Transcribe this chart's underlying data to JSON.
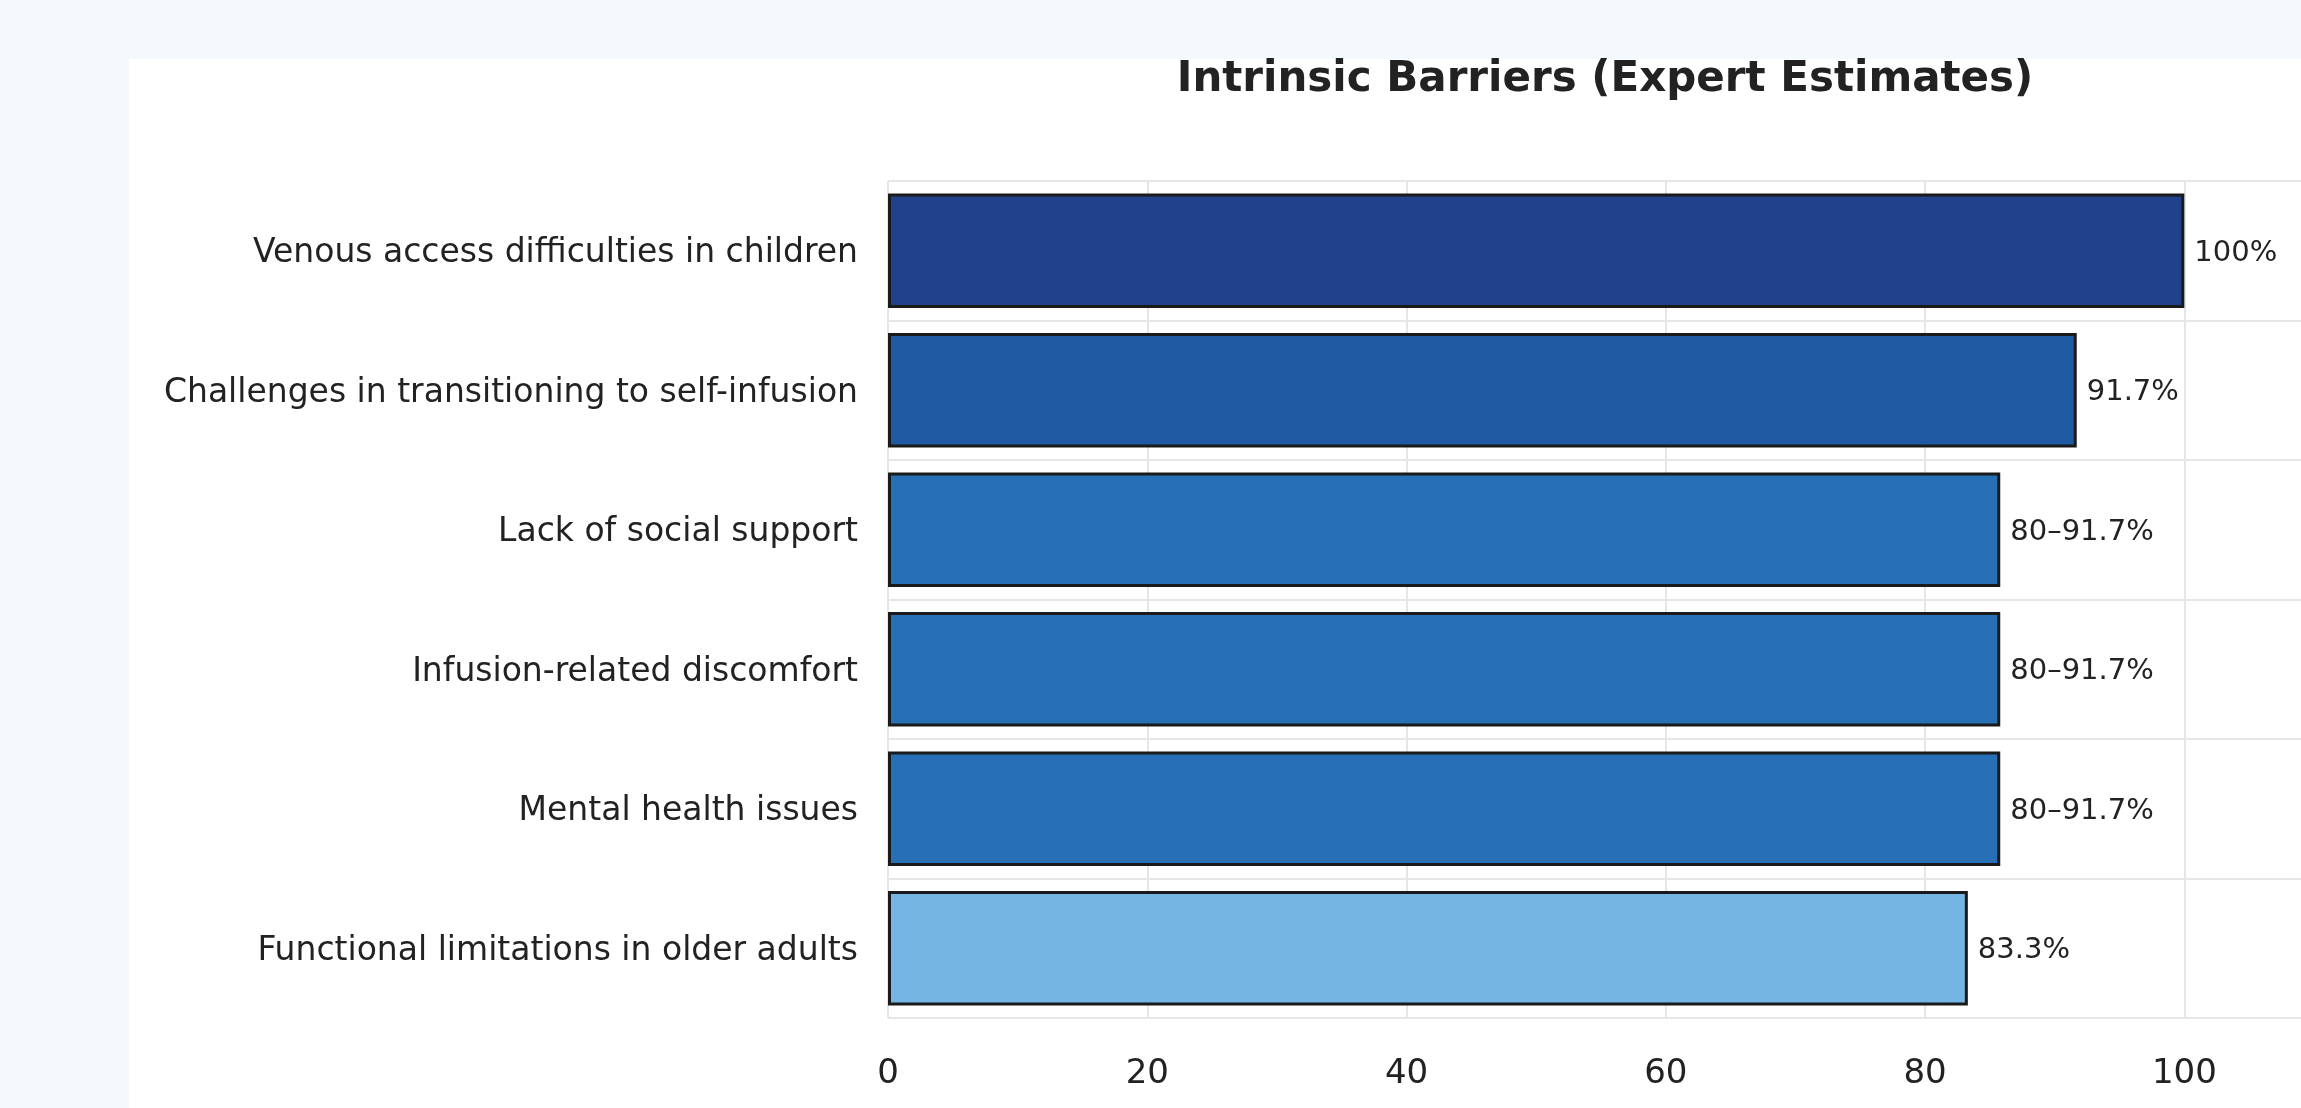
{
  "chart_data": {
    "type": "bar",
    "orientation": "horizontal",
    "title": "Intrinsic Barriers (Expert Estimates)",
    "categories": [
      "Venous access difficulties in children",
      "Challenges in transitioning to self-infusion",
      "Lack of social support",
      "Infusion-related discomfort",
      "Mental health issues",
      "Functional limitations in older adults"
    ],
    "values": [
      100,
      91.7,
      85.8,
      85.8,
      85.8,
      83.3
    ],
    "colors": [
      "#21428a",
      "#1f5aa3",
      "#2870b5",
      "#2870b5",
      "#2870b5",
      "#74b5e3"
    ],
    "value_labels": [
      "100%",
      "91.7%",
      null,
      null,
      null,
      "83.3%"
    ],
    "annotations": [
      "80–91.7%",
      "80–91.7%",
      "80–91.7%"
    ],
    "xlim": [
      0,
      109
    ],
    "xticks": [
      0,
      20,
      40,
      60,
      80,
      100
    ],
    "grid": true
  }
}
